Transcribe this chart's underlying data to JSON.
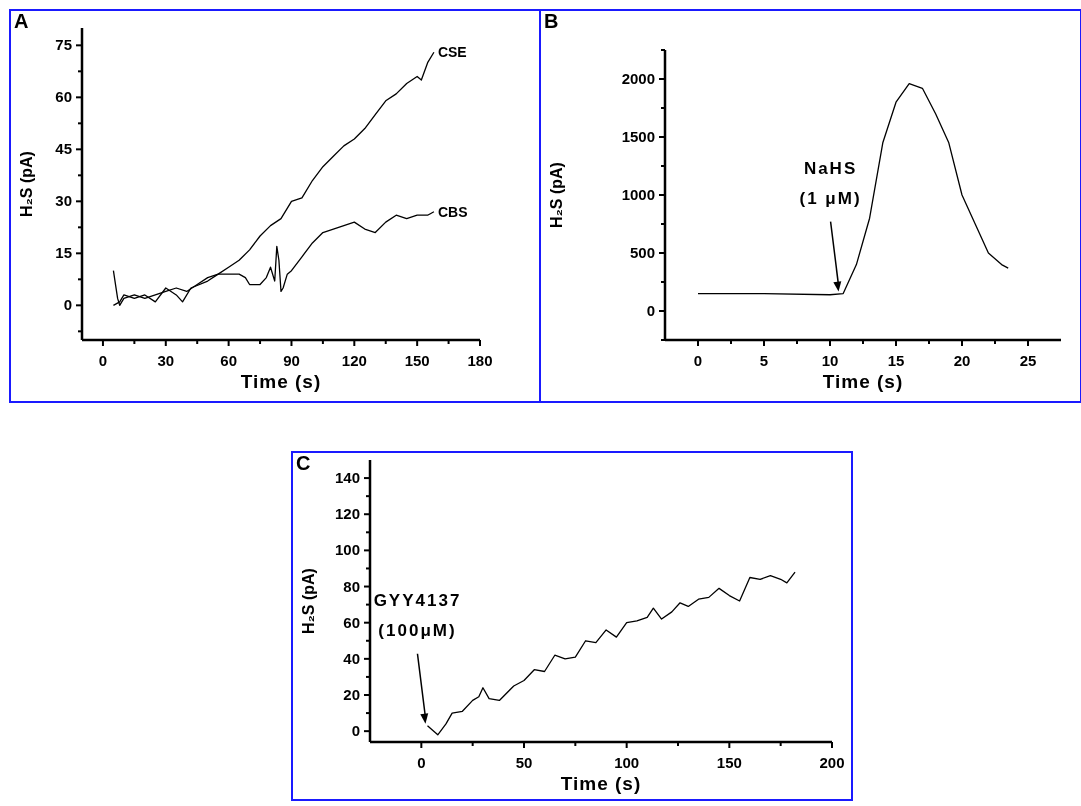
{
  "chart_data": [
    {
      "type": "line",
      "title": "A",
      "xlabel": "Time (s)",
      "ylabel": "H₂S (pA)",
      "xlim": [
        -10,
        180
      ],
      "ylim": [
        -10,
        80
      ],
      "xticks": [
        0,
        {
          "value": 15,
          "label": null
        },
        30,
        {
          "value": 45,
          "label": null
        },
        60,
        {
          "value": 75,
          "label": null
        },
        90,
        {
          "value": 105,
          "label": null
        },
        120,
        {
          "value": 135,
          "label": null
        },
        150,
        {
          "value": 165,
          "label": null
        },
        180
      ],
      "yticks": [
        {
          "value": -7.5,
          "label": null
        },
        0,
        {
          "value": 7.5,
          "label": null
        },
        15,
        {
          "value": 22.5,
          "label": null
        },
        30,
        {
          "value": 37.5,
          "label": null
        },
        45,
        {
          "value": 52.5,
          "label": null
        },
        60,
        {
          "value": 67.5,
          "label": null
        },
        75
      ],
      "series": [
        {
          "name": "CSE",
          "color": "#000000",
          "x": [
            5,
            6,
            7,
            8,
            10,
            15,
            20,
            25,
            30,
            35,
            40,
            45,
            50,
            55,
            60,
            65,
            70,
            75,
            80,
            85,
            90,
            95,
            100,
            105,
            110,
            115,
            120,
            125,
            130,
            135,
            140,
            145,
            150,
            152,
            155,
            158
          ],
          "values": [
            10,
            6,
            2,
            0,
            2,
            3,
            2,
            3,
            4,
            5,
            4,
            6,
            8,
            9,
            11,
            13,
            16,
            20,
            23,
            25,
            30,
            31,
            36,
            40,
            43,
            46,
            48,
            51,
            55,
            59,
            61,
            64,
            66,
            65,
            70,
            73
          ]
        },
        {
          "name": "CBS",
          "color": "#000000",
          "x": [
            5,
            8,
            10,
            15,
            20,
            25,
            30,
            35,
            38,
            42,
            50,
            55,
            60,
            65,
            68,
            70,
            75,
            78,
            80,
            82,
            83,
            84,
            85,
            86,
            88,
            90,
            95,
            100,
            105,
            110,
            115,
            120,
            125,
            130,
            135,
            140,
            145,
            150,
            155,
            158
          ],
          "values": [
            0,
            1,
            3,
            2,
            3,
            1,
            5,
            3,
            1,
            5,
            7,
            9,
            9,
            9,
            8,
            6,
            6,
            8,
            11,
            7,
            17,
            13,
            4,
            5,
            9,
            10,
            14,
            18,
            21,
            22,
            23,
            24,
            22,
            21,
            24,
            26,
            25,
            26,
            26,
            27
          ]
        }
      ]
    },
    {
      "type": "line",
      "title": "B",
      "xlabel": "Time (s)",
      "ylabel": "H₂S (pA)",
      "xlim": [
        -2.5,
        27.5
      ],
      "ylim": [
        -250,
        2250
      ],
      "xticks": [
        0,
        {
          "value": 2.5,
          "label": null
        },
        5,
        {
          "value": 7.5,
          "label": null
        },
        10,
        {
          "value": 12.5,
          "label": null
        },
        15,
        {
          "value": 17.5,
          "label": null
        },
        20,
        {
          "value": 22.5,
          "label": null
        },
        25
      ],
      "yticks": [
        {
          "value": -250,
          "label": null
        },
        0,
        {
          "value": 250,
          "label": null
        },
        500,
        {
          "value": 750,
          "label": null
        },
        1000,
        {
          "value": 1250,
          "label": null
        },
        1500,
        {
          "value": 1750,
          "label": null
        },
        2000,
        {
          "value": 2250,
          "label": null
        }
      ],
      "annotations": [
        {
          "text": "NaHS\n(1 μM)",
          "x": 10.8,
          "y": 150
        }
      ],
      "series": [
        {
          "color": "#000000",
          "x": [
            0,
            5,
            10,
            11,
            12,
            13,
            14,
            15,
            16,
            17,
            18,
            19,
            20,
            21,
            22,
            23,
            23.5
          ],
          "values": [
            150,
            150,
            140,
            150,
            400,
            800,
            1450,
            1800,
            1960,
            1920,
            1700,
            1450,
            1000,
            750,
            500,
            400,
            370
          ]
        }
      ]
    },
    {
      "type": "line",
      "title": "C",
      "xlabel": "Time (s)",
      "ylabel": "H₂S (pA)",
      "xlim": [
        -25,
        200
      ],
      "ylim": [
        -6,
        150
      ],
      "xticks": [
        0,
        {
          "value": 25,
          "label": null
        },
        50,
        {
          "value": 75,
          "label": null
        },
        100,
        {
          "value": 125,
          "label": null
        },
        150,
        {
          "value": 175,
          "label": null
        },
        200
      ],
      "yticks": [
        0,
        {
          "value": 10,
          "label": null
        },
        20,
        {
          "value": 30,
          "label": null
        },
        40,
        {
          "value": 50,
          "label": null
        },
        60,
        {
          "value": 70,
          "label": null
        },
        80,
        {
          "value": 90,
          "label": null
        },
        100,
        {
          "value": 110,
          "label": null
        },
        120,
        {
          "value": 130,
          "label": null
        },
        140
      ],
      "annotations": [
        {
          "text": "GYY4137\n(100μM)",
          "x": 3,
          "y": 3
        }
      ],
      "series": [
        {
          "color": "#000000",
          "x": [
            3,
            8,
            12,
            15,
            20,
            25,
            28,
            30,
            33,
            38,
            45,
            50,
            55,
            60,
            65,
            70,
            75,
            80,
            85,
            90,
            95,
            100,
            105,
            110,
            113,
            117,
            122,
            126,
            130,
            135,
            140,
            145,
            150,
            155,
            160,
            165,
            170,
            175,
            178,
            182
          ],
          "values": [
            3,
            -2,
            4,
            10,
            11,
            17,
            19,
            24,
            18,
            17,
            25,
            28,
            34,
            33,
            42,
            40,
            41,
            50,
            49,
            56,
            52,
            60,
            61,
            63,
            68,
            62,
            66,
            71,
            69,
            73,
            74,
            79,
            75,
            72,
            85,
            84,
            86,
            84,
            82,
            88
          ]
        }
      ]
    }
  ]
}
